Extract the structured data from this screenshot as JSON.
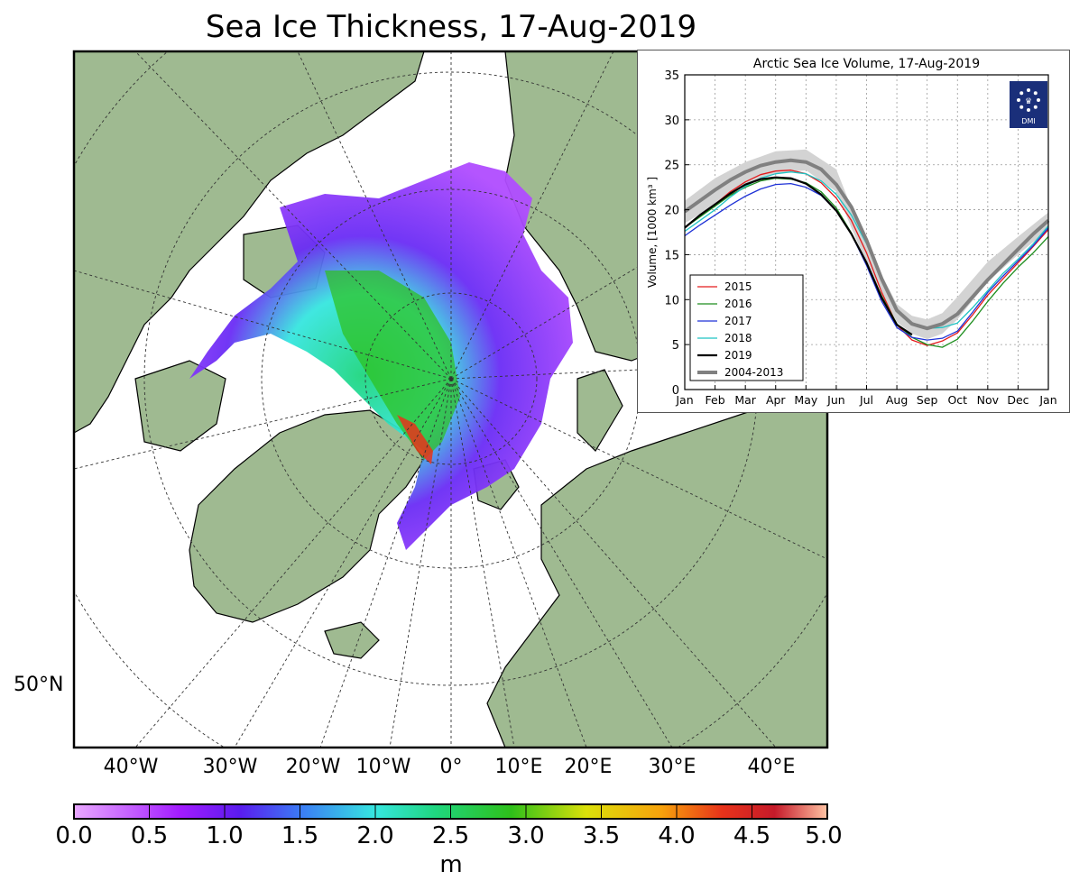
{
  "map": {
    "title": "Sea Ice Thickness, 17-Aug-2019",
    "lat_labels": [
      "50°N"
    ],
    "lon_labels": [
      "40°W",
      "30°W",
      "20°W",
      "10°W",
      "0°",
      "10°E",
      "20°E",
      "30°E",
      "40°E"
    ],
    "colors": {
      "land": "#9fba91",
      "ocean": "#ffffff",
      "coast": "#000000"
    }
  },
  "colorbar": {
    "ticks": [
      "0.0",
      "0.5",
      "1.0",
      "1.5",
      "2.0",
      "2.5",
      "3.0",
      "3.5",
      "4.0",
      "4.5",
      "5.0"
    ],
    "unit": "m",
    "colors": [
      "#e9a8ff",
      "#a31cff",
      "#4a1cf0",
      "#3b7af5",
      "#36e6df",
      "#1fd67f",
      "#2ec01a",
      "#dbe00a",
      "#f7a20c",
      "#e8331a",
      "#c51a2a",
      "#ffc3a3"
    ]
  },
  "inset": {
    "logo_text": "DMI",
    "logo_color": "#1a2f7a"
  },
  "chart_data": {
    "type": "line",
    "title": "Arctic Sea Ice Volume, 17-Aug-2019",
    "ylabel": "Volume, [1000 km³ ]",
    "xlabel": "",
    "x_ticks": [
      "Jan",
      "Feb",
      "Mar",
      "Apr",
      "May",
      "Jun",
      "Jul",
      "Aug",
      "Sep",
      "Oct",
      "Nov",
      "Dec",
      "Jan"
    ],
    "y_ticks": [
      0,
      5,
      10,
      15,
      20,
      25,
      30,
      35
    ],
    "ylim": [
      0,
      35
    ],
    "xlim": [
      0,
      12
    ],
    "grid": true,
    "legend_position": "lower-left",
    "band": {
      "name": "2004-2013 range",
      "x": [
        0,
        1,
        2,
        3,
        4,
        5,
        6,
        7,
        7.5,
        8,
        8.5,
        9,
        10,
        11,
        12
      ],
      "lower": [
        18.5,
        20.5,
        22.8,
        24,
        24.4,
        22,
        14,
        7.5,
        6.2,
        5.6,
        6.2,
        7.8,
        12,
        15,
        17.8
      ],
      "upper": [
        21,
        23.5,
        25.3,
        26.5,
        26.7,
        24.5,
        16,
        9.5,
        8.2,
        7.8,
        8.5,
        10.3,
        14.2,
        17,
        19.7
      ]
    },
    "series": [
      {
        "name": "2015",
        "color": "#e41a1c",
        "width": 1.3,
        "x": [
          0,
          0.5,
          1,
          1.5,
          2,
          2.5,
          3,
          3.5,
          4,
          4.5,
          5,
          5.5,
          6,
          6.5,
          7,
          7.5,
          8,
          8.5,
          9,
          9.5,
          10,
          10.5,
          11,
          11.5,
          12
        ],
        "y": [
          18,
          19.3,
          20.6,
          22,
          23.1,
          23.9,
          24.3,
          24.4,
          24,
          23,
          21.3,
          18.8,
          15.2,
          10.8,
          7.2,
          5.5,
          4.9,
          5.4,
          6.3,
          8.3,
          10.5,
          12.3,
          14.1,
          15.9,
          17.8
        ]
      },
      {
        "name": "2016",
        "color": "#1e8e1e",
        "width": 1.3,
        "x": [
          0,
          0.5,
          1,
          1.5,
          2,
          2.5,
          3,
          3.5,
          4,
          4.5,
          5,
          5.5,
          6,
          6.5,
          7,
          7.5,
          8,
          8.5,
          9,
          9.5,
          10,
          10.5,
          11,
          11.5,
          12
        ],
        "y": [
          18,
          19.2,
          20.4,
          21.6,
          22.5,
          23.2,
          23.5,
          23.4,
          23,
          22,
          20.2,
          17.4,
          14.1,
          10.4,
          7.3,
          5.8,
          5.0,
          4.7,
          5.6,
          7.6,
          9.8,
          11.8,
          13.6,
          15.2,
          17
        ]
      },
      {
        "name": "2017",
        "color": "#1f32d6",
        "width": 1.3,
        "x": [
          0,
          0.5,
          1,
          1.5,
          2,
          2.5,
          3,
          3.5,
          4,
          4.5,
          5,
          5.5,
          6,
          6.5,
          7,
          7.5,
          8,
          8.5,
          9,
          9.5,
          10,
          10.5,
          11,
          11.5,
          12
        ],
        "y": [
          17.1,
          18.3,
          19.4,
          20.5,
          21.5,
          22.3,
          22.8,
          22.9,
          22.5,
          21.6,
          19.9,
          17.3,
          13.8,
          9.8,
          6.9,
          5.8,
          5.5,
          5.7,
          6.5,
          8.6,
          10.8,
          12.6,
          14.3,
          16,
          18
        ]
      },
      {
        "name": "2018",
        "color": "#1fc4c4",
        "width": 1.3,
        "x": [
          0,
          0.5,
          1,
          1.5,
          2,
          2.5,
          3,
          3.5,
          4,
          4.5,
          5,
          5.5,
          6,
          6.5,
          7,
          7.5,
          8,
          8.5,
          9,
          9.5,
          10,
          10.5,
          11,
          11.5,
          12
        ],
        "y": [
          17.6,
          18.8,
          20,
          21.4,
          22.6,
          23.5,
          24,
          24.2,
          24,
          23.2,
          21.7,
          19.4,
          16.2,
          12.2,
          8.8,
          7.4,
          6.8,
          6.9,
          7.4,
          9.1,
          11,
          12.9,
          14.5,
          16.2,
          18.2
        ]
      },
      {
        "name": "2019",
        "color": "#000000",
        "width": 2.2,
        "x": [
          0,
          0.5,
          1,
          1.5,
          2,
          2.5,
          3,
          3.5,
          4,
          4.5,
          5,
          5.5,
          6,
          6.5,
          7,
          7.5
        ],
        "y": [
          18,
          19.4,
          20.6,
          21.8,
          22.8,
          23.4,
          23.6,
          23.5,
          22.9,
          21.7,
          19.9,
          17.3,
          14.1,
          10.2,
          7.2,
          6.1
        ]
      },
      {
        "name": "2004-2013",
        "color": "#808080",
        "width": 4,
        "x": [
          0,
          0.5,
          1,
          1.5,
          2,
          2.5,
          3,
          3.5,
          4,
          4.5,
          5,
          5.5,
          6,
          6.5,
          7,
          7.5,
          8,
          8.5,
          9,
          9.5,
          10,
          10.5,
          11,
          11.5,
          12
        ],
        "y": [
          19.8,
          21,
          22.2,
          23.3,
          24.2,
          24.9,
          25.3,
          25.5,
          25.3,
          24.5,
          22.8,
          20.3,
          16.6,
          12.3,
          8.8,
          7.3,
          6.8,
          7.3,
          8.4,
          10.3,
          12.2,
          13.9,
          15.6,
          17.3,
          18.8
        ]
      }
    ]
  }
}
